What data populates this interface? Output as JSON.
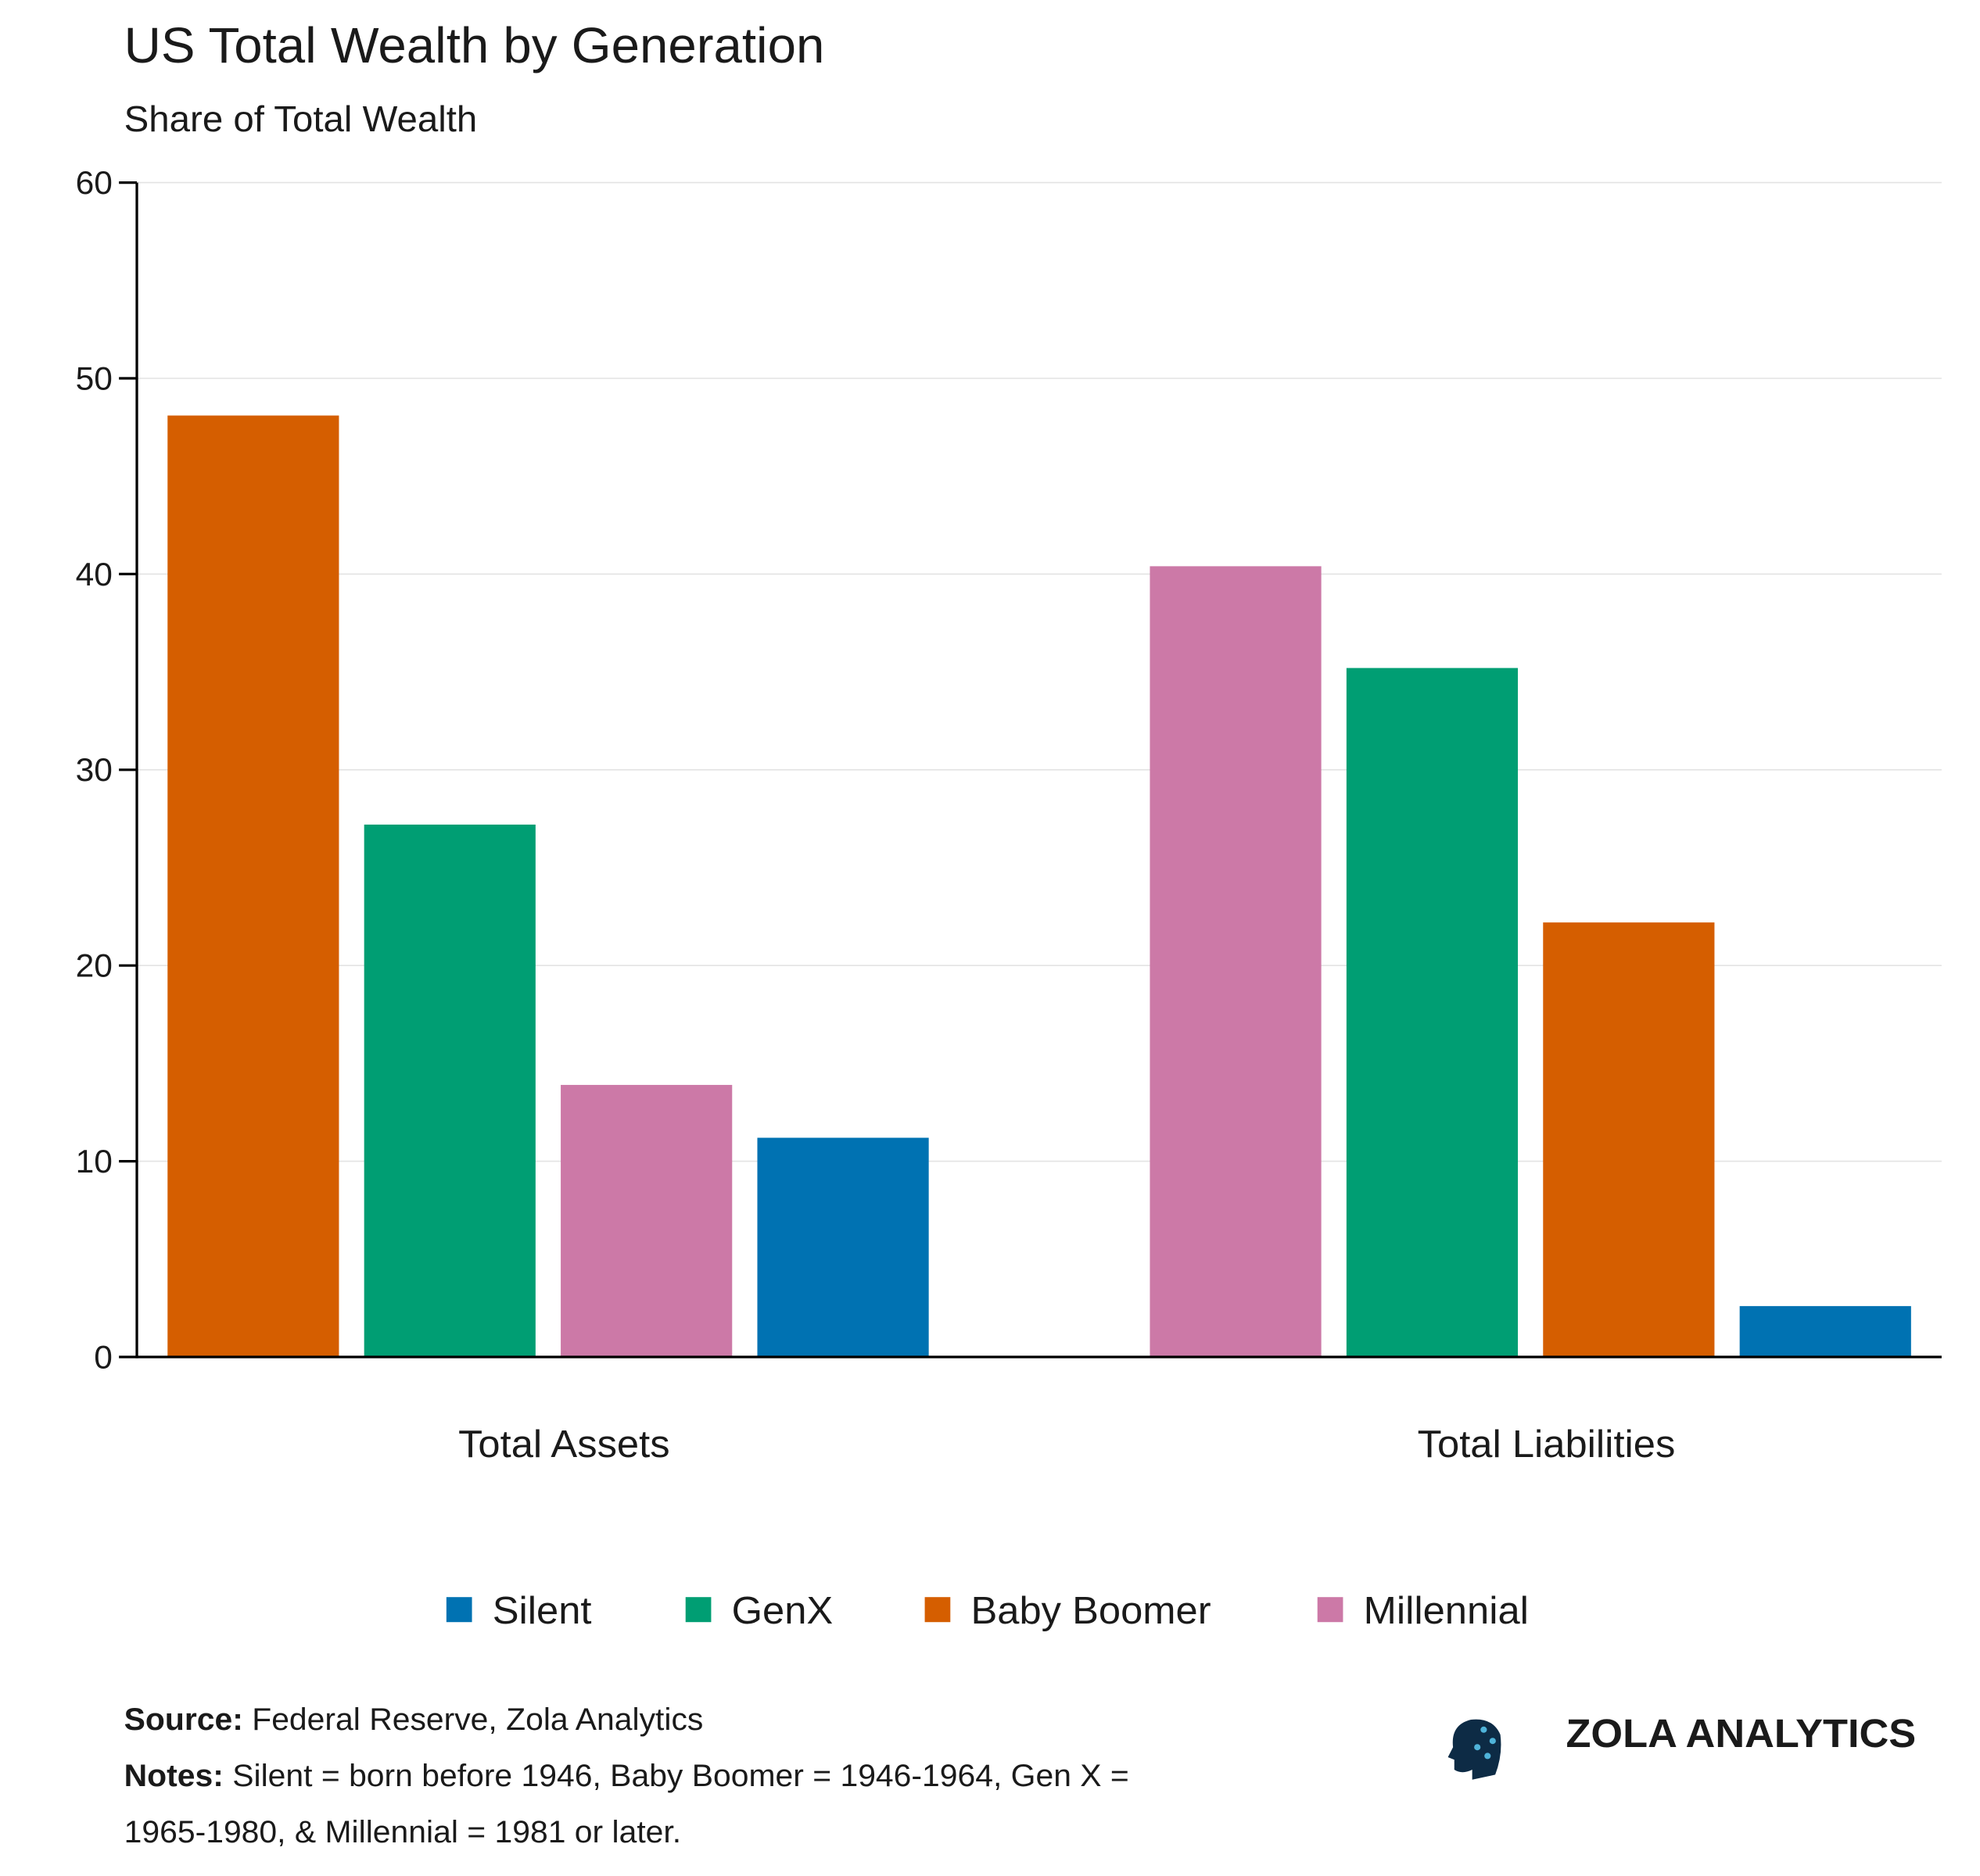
{
  "chart_data": {
    "type": "bar",
    "title": "US Total Wealth by Generation",
    "subtitle": "Share of Total Wealth",
    "xlabel": "",
    "ylabel": "",
    "ylim": [
      0,
      60
    ],
    "yticks": [
      "0",
      "10",
      "20",
      "30",
      "40",
      "50",
      "60"
    ],
    "grid": true,
    "legend_position": "bottom",
    "categories": [
      "Total Assets",
      "Total Liabilities"
    ],
    "groups": [
      {
        "category": "Total Assets",
        "bars": [
          {
            "series": "Baby Boomer",
            "value": 48.1
          },
          {
            "series": "GenX",
            "value": 27.2
          },
          {
            "series": "Millennial",
            "value": 13.9
          },
          {
            "series": "Silent",
            "value": 11.2
          }
        ]
      },
      {
        "category": "Total Liabilities",
        "bars": [
          {
            "series": "Millennial",
            "value": 40.4
          },
          {
            "series": "GenX",
            "value": 35.2
          },
          {
            "series": "Baby Boomer",
            "value": 22.2
          },
          {
            "series": "Silent",
            "value": 2.6
          }
        ]
      }
    ],
    "legend": [
      {
        "name": "Silent",
        "color": "#0072b2"
      },
      {
        "name": "GenX",
        "color": "#009e73"
      },
      {
        "name": "Baby Boomer",
        "color": "#d55e00"
      },
      {
        "name": "Millennial",
        "color": "#cc79a7"
      }
    ]
  },
  "footer": {
    "source_label": "Source:",
    "source_text": " Federal Reserve, Zola Analytics",
    "notes_label": "Notes:",
    "notes_line1": " Silent = born before 1946, Baby Boomer = 1946-1964, Gen X =",
    "notes_line2": "1965-1980, & Millennial = 1981 or later."
  },
  "logo": {
    "text": "ZOLA ANALYTICS"
  }
}
